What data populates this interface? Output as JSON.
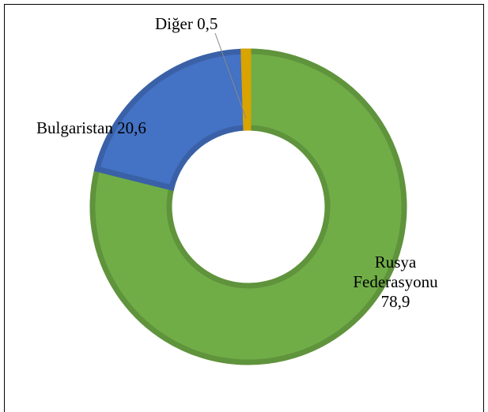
{
  "chart_data": {
    "type": "donut",
    "categories": [
      "Rusya Federasyonu",
      "Bulgaristan",
      "Diğer"
    ],
    "values": [
      78.9,
      20.6,
      0.5
    ],
    "value_labels": [
      "78,9",
      "20,6",
      "0,5"
    ],
    "colors": [
      "#70ad47",
      "#4472c4",
      "#ffc000"
    ]
  }
}
